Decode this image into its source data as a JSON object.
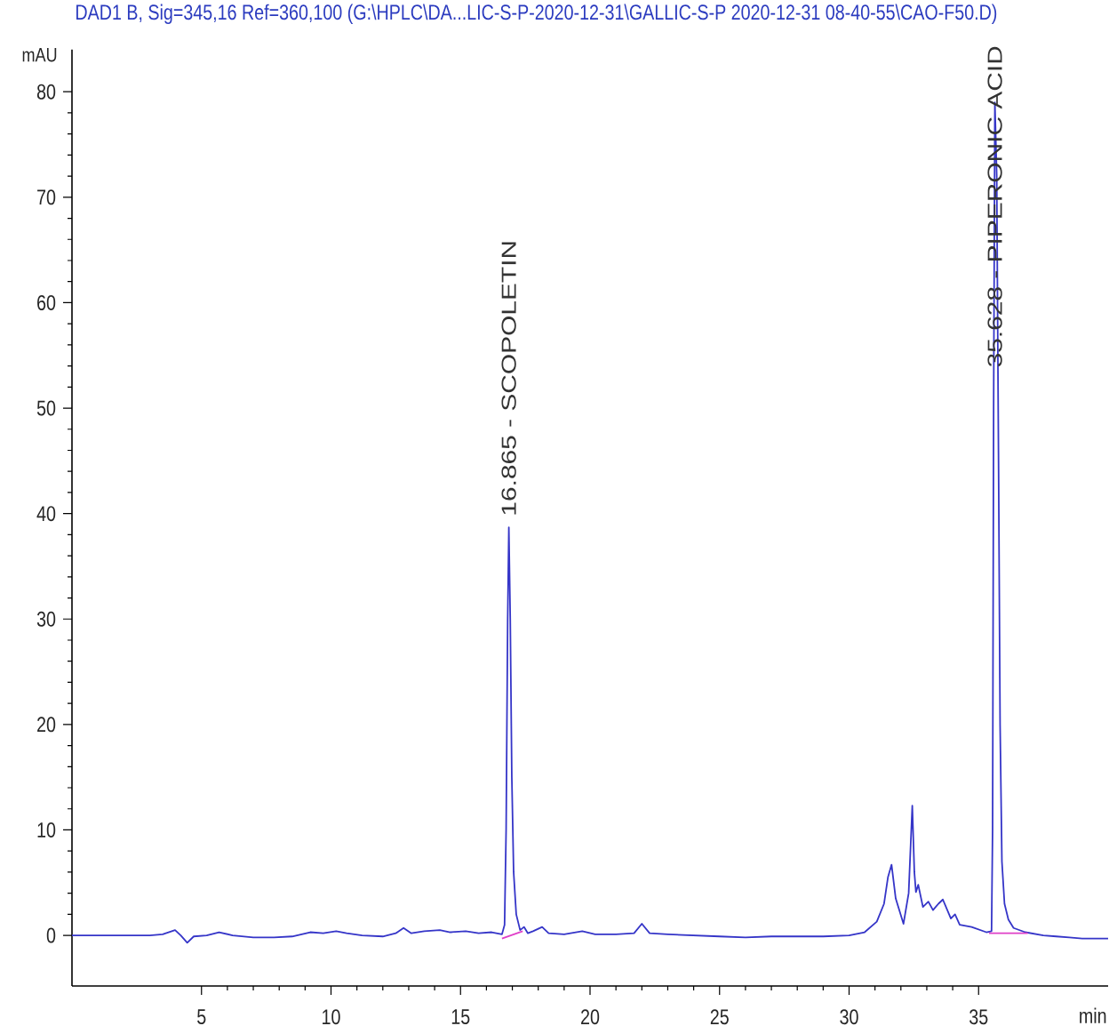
{
  "chart_data": {
    "type": "line",
    "title": "DAD1 B, Sig=345,16 Ref=360,100 (G:\\HPLC\\DA...LIC-S-P-2020-12-31\\GALLIC-S-P 2020-12-31 08-40-55\\CAO-F50.D)",
    "xlabel": "min",
    "ylabel": "mAU",
    "xlim": [
      0,
      40
    ],
    "ylim": [
      -4.8,
      84
    ],
    "xticks": [
      5,
      10,
      15,
      20,
      25,
      30,
      35
    ],
    "yticks": [
      0,
      10,
      20,
      30,
      40,
      50,
      60,
      70,
      80
    ],
    "line_style": "solid",
    "series": [
      {
        "color": "#3535c8",
        "x": [
          0.0,
          1.0,
          2.0,
          3.0,
          3.5,
          3.98,
          4.2,
          4.45,
          4.7,
          5.2,
          5.68,
          6.2,
          7.0,
          7.8,
          8.5,
          9.2,
          9.7,
          10.2,
          10.6,
          11.2,
          12.0,
          12.5,
          12.8,
          13.1,
          13.6,
          14.2,
          14.6,
          15.2,
          15.7,
          16.2,
          16.6,
          16.7,
          16.76,
          16.82,
          16.865,
          16.92,
          16.98,
          17.05,
          17.15,
          17.3,
          17.45,
          17.6,
          17.8,
          18.15,
          18.4,
          19.0,
          19.7,
          20.2,
          21.0,
          21.7,
          22.0,
          22.3,
          23.0,
          24.0,
          25.0,
          26.0,
          27.0,
          28.0,
          29.0,
          30.0,
          30.6,
          31.07,
          31.35,
          31.5,
          31.64,
          31.8,
          32.1,
          32.3,
          32.44,
          32.52,
          32.58,
          32.67,
          32.85,
          33.06,
          33.24,
          33.45,
          33.62,
          33.93,
          34.09,
          34.27,
          34.73,
          35.3,
          35.5,
          35.54,
          35.58,
          35.628,
          35.7,
          35.77,
          35.83,
          35.9,
          36.0,
          36.15,
          36.35,
          36.8,
          37.5,
          38.0,
          38.5,
          39.0,
          40.0
        ],
        "values": [
          0.0,
          0.0,
          0.0,
          0.0,
          0.1,
          0.5,
          0.0,
          -0.7,
          -0.1,
          0.0,
          0.3,
          0.0,
          -0.2,
          -0.2,
          -0.1,
          0.3,
          0.2,
          0.4,
          0.2,
          0.0,
          -0.1,
          0.2,
          0.7,
          0.2,
          0.4,
          0.5,
          0.3,
          0.4,
          0.2,
          0.3,
          0.1,
          1.0,
          10.0,
          30.0,
          38.7,
          30.0,
          15.0,
          6.0,
          2.0,
          0.5,
          0.8,
          0.2,
          0.4,
          0.8,
          0.2,
          0.1,
          0.4,
          0.1,
          0.1,
          0.2,
          1.1,
          0.2,
          0.1,
          0.0,
          -0.1,
          -0.2,
          -0.1,
          -0.1,
          -0.1,
          0.0,
          0.3,
          1.3,
          3.0,
          5.5,
          6.7,
          3.5,
          1.1,
          4.0,
          12.3,
          6.0,
          4.1,
          4.8,
          2.7,
          3.2,
          2.4,
          3.0,
          3.4,
          1.6,
          2.0,
          1.0,
          0.8,
          0.3,
          0.4,
          10.0,
          50.0,
          79.0,
          72.0,
          45.0,
          20.0,
          7.0,
          3.0,
          1.5,
          0.7,
          0.3,
          0.0,
          -0.1,
          -0.2,
          -0.3,
          -0.3
        ]
      },
      {
        "color": "#e040c8",
        "x": [
          16.6,
          17.4
        ],
        "values": [
          -0.3,
          0.4
        ]
      },
      {
        "color": "#e040c8",
        "x": [
          35.4,
          36.9
        ],
        "values": [
          0.2,
          0.2
        ]
      }
    ],
    "annotations": [
      {
        "text": "16.865 - SCOPOLETIN",
        "x": 16.865,
        "y": 38.7
      },
      {
        "text": "35.628 - PIPERONIC ACID",
        "x": 35.628,
        "y": 52.8
      }
    ]
  }
}
